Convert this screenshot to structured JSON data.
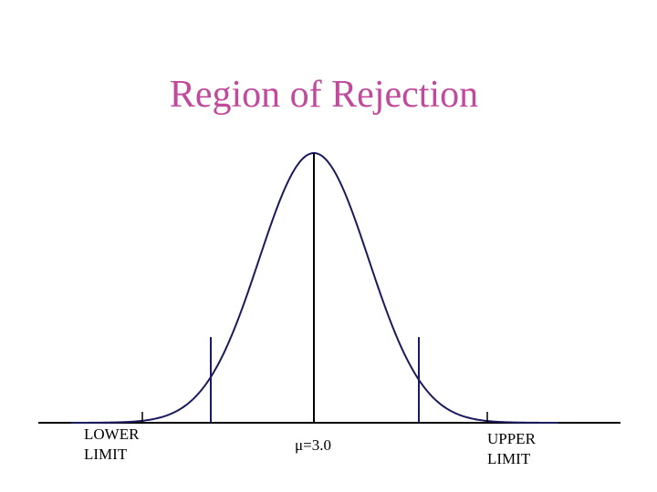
{
  "title": "Region of Rejection",
  "labels": {
    "lower_line1": "LOWER",
    "lower_line2": "LIMIT",
    "mean": "μ=3.0",
    "upper_line1": "UPPER",
    "upper_line2": "LIMIT"
  },
  "colors": {
    "title": "#c04a9c",
    "curve": "#1a1a5e",
    "axis": "#000000"
  }
}
